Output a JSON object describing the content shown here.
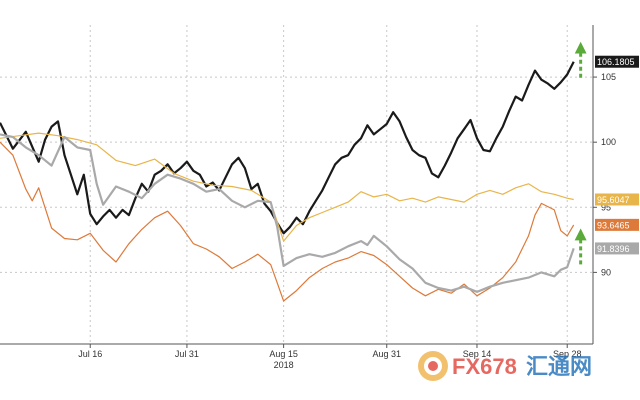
{
  "chart_data": {
    "type": "line",
    "xlabel": "",
    "ylabel": "",
    "ylim": [
      84.5,
      109
    ],
    "xlim": [
      0,
      92
    ],
    "grid": true,
    "x_ticks": [
      {
        "x": 14,
        "label": "Jul 16"
      },
      {
        "x": 29,
        "label": "Jul 31"
      },
      {
        "x": 44,
        "label": "Aug 15"
      },
      {
        "x": 60,
        "label": "Aug 31"
      },
      {
        "x": 74,
        "label": "Sep 14"
      },
      {
        "x": 88,
        "label": "Sep 28"
      }
    ],
    "year_label": {
      "x": 44,
      "label": "2018"
    },
    "y_ticks": [
      90,
      95,
      100,
      105
    ],
    "series": [
      {
        "color": "#1a1a1a",
        "last_value_label": "106.1805",
        "points": [
          [
            0,
            101.5
          ],
          [
            2,
            99.5
          ],
          [
            4,
            100.8
          ],
          [
            6,
            98.5
          ],
          [
            7,
            100.2
          ],
          [
            8,
            101.2
          ],
          [
            9,
            101.6
          ],
          [
            10,
            99
          ],
          [
            11,
            97.5
          ],
          [
            12,
            96
          ],
          [
            13,
            97.5
          ],
          [
            14,
            94.5
          ],
          [
            15,
            93.7
          ],
          [
            16,
            94.3
          ],
          [
            17,
            94.8
          ],
          [
            18,
            94.2
          ],
          [
            19,
            94.8
          ],
          [
            20,
            94.4
          ],
          [
            21,
            95.7
          ],
          [
            22,
            96.8
          ],
          [
            23,
            96.2
          ],
          [
            24,
            97.5
          ],
          [
            25,
            97.8
          ],
          [
            26,
            98.3
          ],
          [
            27,
            97.6
          ],
          [
            28,
            98
          ],
          [
            29,
            98.5
          ],
          [
            30,
            97.8
          ],
          [
            31,
            97.5
          ],
          [
            32,
            96.6
          ],
          [
            33,
            96.9
          ],
          [
            34,
            96.3
          ],
          [
            35,
            97.3
          ],
          [
            36,
            98.3
          ],
          [
            37,
            98.8
          ],
          [
            38,
            98
          ],
          [
            39,
            96.4
          ],
          [
            40,
            96.8
          ],
          [
            41,
            95.3
          ],
          [
            42,
            94.7
          ],
          [
            43,
            93.8
          ],
          [
            44,
            93
          ],
          [
            45,
            93.5
          ],
          [
            46,
            94.2
          ],
          [
            47,
            93.7
          ],
          [
            48,
            94.7
          ],
          [
            49,
            95.5
          ],
          [
            50,
            96.3
          ],
          [
            51,
            97.3
          ],
          [
            52,
            98.3
          ],
          [
            53,
            98.8
          ],
          [
            54,
            99
          ],
          [
            55,
            99.8
          ],
          [
            56,
            100.3
          ],
          [
            57,
            101.3
          ],
          [
            58,
            100.6
          ],
          [
            59,
            101
          ],
          [
            60,
            101.4
          ],
          [
            61,
            102.3
          ],
          [
            62,
            101.6
          ],
          [
            63,
            100.4
          ],
          [
            64,
            99.4
          ],
          [
            65,
            99
          ],
          [
            66,
            98.8
          ],
          [
            67,
            97.6
          ],
          [
            68,
            97.3
          ],
          [
            69,
            98.2
          ],
          [
            70,
            99.2
          ],
          [
            71,
            100.3
          ],
          [
            72,
            101
          ],
          [
            73,
            101.7
          ],
          [
            74,
            100.3
          ],
          [
            75,
            99.4
          ],
          [
            76,
            99.3
          ],
          [
            77,
            100.3
          ],
          [
            78,
            101.2
          ],
          [
            79,
            102.4
          ],
          [
            80,
            103.5
          ],
          [
            81,
            103.2
          ],
          [
            82,
            104.4
          ],
          [
            83,
            105.5
          ],
          [
            84,
            104.8
          ],
          [
            85,
            104.5
          ],
          [
            86,
            104.1
          ],
          [
            87,
            104.6
          ],
          [
            88,
            105.2
          ],
          [
            89,
            106.18
          ]
        ]
      },
      {
        "color": "#e8b54a",
        "last_value_label": "95.6047",
        "points": [
          [
            0,
            100.3
          ],
          [
            3,
            100.5
          ],
          [
            6,
            100.7
          ],
          [
            9,
            100.5
          ],
          [
            12,
            100.2
          ],
          [
            15,
            99.8
          ],
          [
            18,
            98.6
          ],
          [
            21,
            98.2
          ],
          [
            24,
            98.7
          ],
          [
            27,
            97.6
          ],
          [
            30,
            97
          ],
          [
            33,
            96.7
          ],
          [
            36,
            96.6
          ],
          [
            39,
            96.3
          ],
          [
            42,
            95.4
          ],
          [
            44,
            92.4
          ],
          [
            46,
            93.6
          ],
          [
            48,
            94.2
          ],
          [
            50,
            94.6
          ],
          [
            52,
            95
          ],
          [
            54,
            95.4
          ],
          [
            56,
            96.2
          ],
          [
            58,
            95.8
          ],
          [
            60,
            96
          ],
          [
            62,
            95.5
          ],
          [
            64,
            95.7
          ],
          [
            66,
            95.4
          ],
          [
            68,
            95.8
          ],
          [
            70,
            95.6
          ],
          [
            72,
            95.4
          ],
          [
            74,
            96
          ],
          [
            76,
            96.3
          ],
          [
            78,
            96
          ],
          [
            80,
            96.5
          ],
          [
            82,
            96.8
          ],
          [
            84,
            96.2
          ],
          [
            86,
            96
          ],
          [
            88,
            95.7
          ],
          [
            89,
            95.6
          ]
        ]
      },
      {
        "color": "#dd7a3a",
        "last_value_label": "93.6465",
        "points": [
          [
            0,
            100
          ],
          [
            2,
            99
          ],
          [
            4,
            96.4
          ],
          [
            5,
            95.5
          ],
          [
            6,
            96.5
          ],
          [
            8,
            93.4
          ],
          [
            10,
            92.6
          ],
          [
            12,
            92.5
          ],
          [
            14,
            93
          ],
          [
            16,
            91.7
          ],
          [
            18,
            90.8
          ],
          [
            20,
            92.2
          ],
          [
            22,
            93.3
          ],
          [
            24,
            94.2
          ],
          [
            26,
            94.7
          ],
          [
            28,
            93.6
          ],
          [
            30,
            92.2
          ],
          [
            32,
            91.8
          ],
          [
            34,
            91.2
          ],
          [
            36,
            90.3
          ],
          [
            38,
            90.8
          ],
          [
            40,
            91.4
          ],
          [
            42,
            90.6
          ],
          [
            43,
            89.2
          ],
          [
            44,
            87.8
          ],
          [
            46,
            88.6
          ],
          [
            48,
            89.6
          ],
          [
            50,
            90.3
          ],
          [
            52,
            90.8
          ],
          [
            54,
            91.1
          ],
          [
            56,
            91.6
          ],
          [
            58,
            91.3
          ],
          [
            60,
            90.6
          ],
          [
            62,
            89.7
          ],
          [
            64,
            88.8
          ],
          [
            66,
            88.2
          ],
          [
            68,
            88.7
          ],
          [
            70,
            88.4
          ],
          [
            72,
            89.1
          ],
          [
            74,
            88.2
          ],
          [
            76,
            88.8
          ],
          [
            78,
            89.6
          ],
          [
            80,
            90.8
          ],
          [
            82,
            92.8
          ],
          [
            83,
            94.4
          ],
          [
            84,
            95.3
          ],
          [
            86,
            94.8
          ],
          [
            87,
            93.2
          ],
          [
            88,
            92.8
          ],
          [
            89,
            93.65
          ]
        ]
      },
      {
        "color": "#a9a9a9",
        "last_value_label": "91.8396",
        "points": [
          [
            0,
            100.6
          ],
          [
            2,
            100.4
          ],
          [
            4,
            99.6
          ],
          [
            6,
            99
          ],
          [
            8,
            98.2
          ],
          [
            10,
            100.4
          ],
          [
            12,
            99.6
          ],
          [
            14,
            99.4
          ],
          [
            15,
            96.8
          ],
          [
            16,
            95.2
          ],
          [
            18,
            96.6
          ],
          [
            20,
            96.2
          ],
          [
            22,
            95.7
          ],
          [
            24,
            96.8
          ],
          [
            26,
            97.5
          ],
          [
            28,
            97.2
          ],
          [
            30,
            96.8
          ],
          [
            32,
            96.2
          ],
          [
            34,
            96.4
          ],
          [
            36,
            95.5
          ],
          [
            38,
            95
          ],
          [
            40,
            95.5
          ],
          [
            42,
            95.4
          ],
          [
            43,
            93.5
          ],
          [
            44,
            90.5
          ],
          [
            46,
            91.1
          ],
          [
            48,
            91.4
          ],
          [
            50,
            91.2
          ],
          [
            52,
            91.5
          ],
          [
            54,
            92
          ],
          [
            56,
            92.4
          ],
          [
            57,
            92.1
          ],
          [
            58,
            92.8
          ],
          [
            60,
            92
          ],
          [
            62,
            91
          ],
          [
            64,
            90.3
          ],
          [
            66,
            89.2
          ],
          [
            68,
            88.8
          ],
          [
            70,
            88.6
          ],
          [
            72,
            88.9
          ],
          [
            74,
            88.5
          ],
          [
            76,
            88.9
          ],
          [
            78,
            89.2
          ],
          [
            80,
            89.4
          ],
          [
            82,
            89.6
          ],
          [
            84,
            90
          ],
          [
            86,
            89.7
          ],
          [
            87,
            90.2
          ],
          [
            88,
            90.4
          ],
          [
            89,
            91.84
          ]
        ]
      }
    ],
    "annotations": [
      {
        "type": "arrow-up",
        "color": "#5aab3a",
        "series_index": 0
      },
      {
        "type": "arrow-up",
        "color": "#5aab3a",
        "series_index": 3
      }
    ]
  },
  "watermark": {
    "text": "FX678",
    "subtext": "汇通网"
  }
}
